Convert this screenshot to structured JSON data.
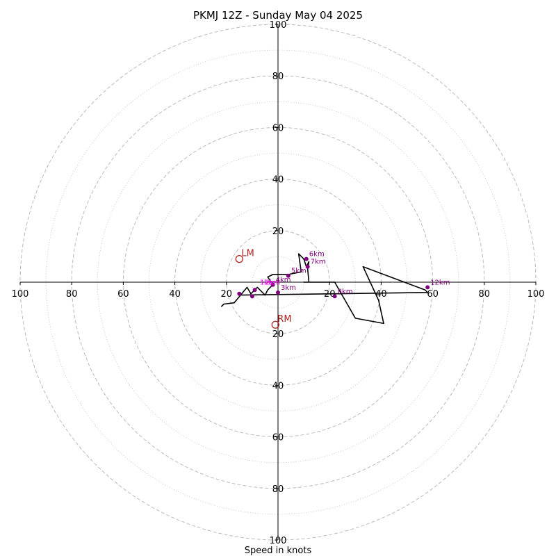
{
  "chart_data": {
    "type": "line",
    "title": "PKMJ 12Z - Sunday May 04 2025",
    "xlabel": "Speed in knots",
    "ylabel": "",
    "xlim": [
      -100,
      100
    ],
    "ylim": [
      -100,
      100
    ],
    "ring_major": [
      20,
      40,
      60,
      80,
      100
    ],
    "ring_minor": [
      10,
      30,
      50,
      70,
      90
    ],
    "tick_labels": [
      "100",
      "80",
      "60",
      "40",
      "20",
      "20",
      "40",
      "60",
      "80",
      "100"
    ],
    "tick_values": [
      -100,
      -80,
      -60,
      -40,
      -20,
      20,
      40,
      60,
      80,
      100
    ],
    "series": [
      {
        "color": "#000000",
        "points": [
          [
            -14.5,
            -5
          ],
          [
            -12,
            -2
          ],
          [
            -10.5,
            -4.5
          ],
          [
            -8,
            -2
          ],
          [
            -5,
            -5
          ],
          [
            -4,
            -3
          ],
          [
            -2,
            -1
          ],
          [
            -4,
            2
          ],
          [
            -2,
            3
          ],
          [
            4,
            3
          ],
          [
            9,
            4
          ],
          [
            8,
            11
          ],
          [
            10,
            9
          ],
          [
            11,
            6
          ],
          [
            12,
            8
          ],
          [
            11.5,
            5
          ],
          [
            12,
            0
          ],
          [
            10,
            0
          ],
          [
            16,
            0
          ],
          [
            22,
            0
          ],
          [
            30,
            -14
          ],
          [
            41,
            -16
          ],
          [
            39,
            -7
          ],
          [
            33,
            6
          ],
          [
            57,
            -3
          ],
          [
            58,
            -4
          ],
          [
            -14.5,
            -5
          ],
          [
            -17,
            -8
          ],
          [
            -21,
            -8.5
          ],
          [
            -22,
            -9.5
          ]
        ]
      }
    ],
    "height_markers": [
      {
        "label": "3km",
        "u": 0,
        "v": -4
      },
      {
        "label": "4km",
        "u": -2,
        "v": -1
      },
      {
        "label": "5km",
        "u": 4,
        "v": 2.5
      },
      {
        "label": "6km",
        "u": 11,
        "v": 9
      },
      {
        "label": "7km",
        "u": 11.5,
        "v": 6
      },
      {
        "label": "8km",
        "u": 22,
        "v": -5.5
      },
      {
        "label": "12km",
        "u": 58,
        "v": -2
      },
      {
        "label": "",
        "u": -9,
        "v": -3
      },
      {
        "label": "",
        "u": -10,
        "v": -5.5
      },
      {
        "label": "",
        "u": -15,
        "v": -4.5
      }
    ],
    "cluster_labels": [
      {
        "label": "1km",
        "u": -7,
        "v": -1
      },
      {
        "label": "2km",
        "u": -5,
        "v": -1
      }
    ],
    "storm_motion": [
      {
        "label": "LM",
        "u": -15,
        "v": 9
      },
      {
        "label": "RM",
        "u": -1,
        "v": -16.5
      }
    ],
    "colors": {
      "line": "#000000",
      "markers": "#800080",
      "cluster_text": "#ff00ff",
      "storm": "#b22222",
      "grid": "#bbbbbb"
    }
  }
}
